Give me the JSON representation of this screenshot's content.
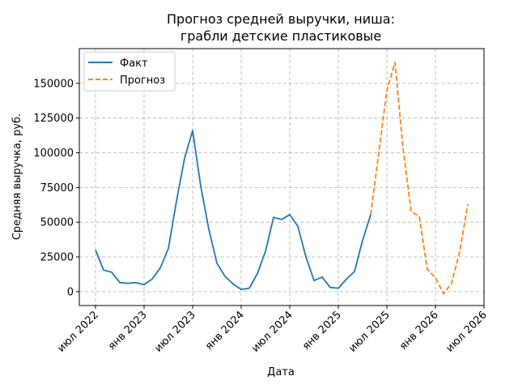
{
  "chart_data": {
    "type": "line",
    "title_line1": "Прогноз средней выручки, ниша:",
    "title_line2": "грабли детские пластиковые",
    "xlabel": "Дата",
    "ylabel": "Средняя выручка, руб.",
    "ylim": [
      -10000,
      175000
    ],
    "yticks": [
      0,
      25000,
      50000,
      75000,
      100000,
      125000,
      150000
    ],
    "xlim_months": [
      "2022-05",
      "2026-07"
    ],
    "xticks": [
      {
        "date": "2022-07",
        "label": "июл 2022"
      },
      {
        "date": "2023-01",
        "label": "янв 2023"
      },
      {
        "date": "2023-07",
        "label": "июл 2023"
      },
      {
        "date": "2024-01",
        "label": "янв 2024"
      },
      {
        "date": "2024-07",
        "label": "июл 2024"
      },
      {
        "date": "2025-01",
        "label": "янв 2025"
      },
      {
        "date": "2025-07",
        "label": "июл 2025"
      },
      {
        "date": "2026-01",
        "label": "янв 2026"
      },
      {
        "date": "2026-07",
        "label": "июл 2026"
      }
    ],
    "grid": true,
    "legend_position": "top-left",
    "series": [
      {
        "name": "Факт",
        "color": "#1f77b4",
        "style": "solid",
        "x": [
          "2022-07",
          "2022-08",
          "2022-09",
          "2022-10",
          "2022-11",
          "2022-12",
          "2023-01",
          "2023-02",
          "2023-03",
          "2023-04",
          "2023-05",
          "2023-06",
          "2023-07",
          "2023-08",
          "2023-09",
          "2023-10",
          "2023-11",
          "2023-12",
          "2024-01",
          "2024-02",
          "2024-03",
          "2024-04",
          "2024-05",
          "2024-06",
          "2024-07",
          "2024-08",
          "2024-09",
          "2024-10",
          "2024-11",
          "2024-12",
          "2025-01",
          "2025-02",
          "2025-03",
          "2025-04",
          "2025-05"
        ],
        "values": [
          30000,
          15500,
          14000,
          6500,
          6000,
          6500,
          5000,
          9000,
          17000,
          31000,
          65000,
          96000,
          116000,
          76000,
          45000,
          20500,
          11000,
          5500,
          1500,
          2500,
          13000,
          29000,
          53500,
          52000,
          55500,
          47000,
          25000,
          8000,
          10500,
          3000,
          2500,
          9000,
          14500,
          37000,
          55500
        ]
      },
      {
        "name": "Прогноз",
        "color": "#ff7f0e",
        "style": "dashed",
        "x": [
          "2025-05",
          "2025-06",
          "2025-07",
          "2025-08",
          "2025-09",
          "2025-10",
          "2025-11",
          "2025-12",
          "2026-01",
          "2026-02",
          "2026-03",
          "2026-04",
          "2026-05"
        ],
        "values": [
          55500,
          100000,
          145000,
          165000,
          103000,
          58000,
          54000,
          16000,
          10000,
          -1500,
          6000,
          29000,
          63000
        ]
      }
    ]
  }
}
